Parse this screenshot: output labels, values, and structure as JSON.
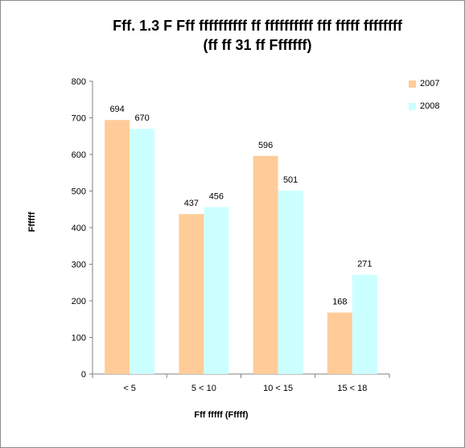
{
  "chart_data": {
    "type": "bar",
    "title_line1": "Fff. 1.3 F Fff ffffffffff ff ffffffffff fff fffff ffffffff",
    "title_line2": "(ff ff 31 ff Fffffff)",
    "xlabel": "Fff fffff (Fffff)",
    "ylabel": "Ffffff",
    "categories": [
      "<  5",
      "5 < 10",
      "10 < 15",
      "15 < 18"
    ],
    "series": [
      {
        "name": "2007",
        "values": [
          694,
          437,
          596,
          168
        ],
        "color": "#FFCC99"
      },
      {
        "name": "2008",
        "values": [
          670,
          456,
          501,
          271
        ],
        "color": "#CCFFFF"
      }
    ],
    "ylim": [
      0,
      800
    ],
    "yticks": [
      0,
      100,
      200,
      300,
      400,
      500,
      600,
      700,
      800
    ],
    "grid": false,
    "legend_position": "top-right"
  }
}
